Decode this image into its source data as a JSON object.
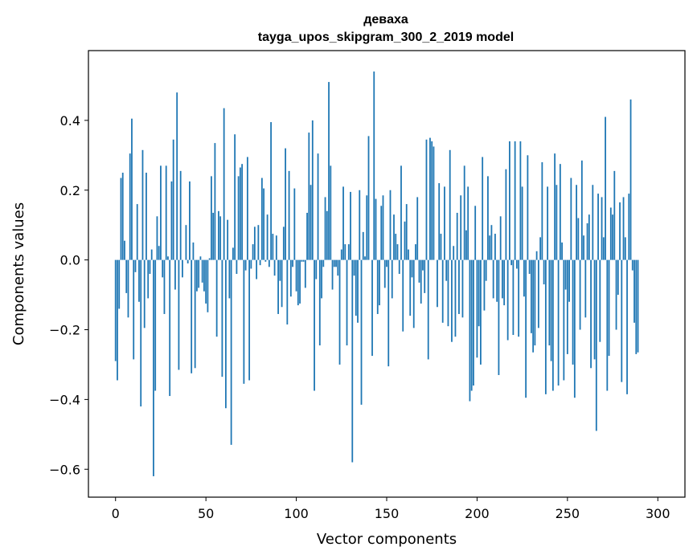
{
  "chart_data": {
    "type": "bar",
    "title": "девaxa",
    "subtitle": "tayga_upos_skipgram_300_2_2019 model",
    "xlabel": "Vector components",
    "ylabel": "Components values",
    "xlim": [
      -15,
      315
    ],
    "ylim": [
      -0.68,
      0.6
    ],
    "xticks": [
      0,
      50,
      100,
      150,
      200,
      250,
      300
    ],
    "yticks": [
      -0.6,
      -0.4,
      -0.2,
      0.0,
      0.2,
      0.4
    ],
    "ytick_labels": [
      "−0.6",
      "−0.4",
      "−0.2",
      "0.0",
      "0.2",
      "0.4"
    ],
    "bar_color": "#1f77b4",
    "values": [
      -0.29,
      -0.345,
      -0.14,
      0.235,
      0.25,
      0.055,
      -0.095,
      -0.165,
      0.305,
      0.405,
      -0.285,
      -0.035,
      0.16,
      -0.12,
      -0.42,
      0.315,
      -0.195,
      0.25,
      -0.11,
      -0.04,
      0.03,
      -0.62,
      -0.375,
      0.125,
      0.04,
      0.27,
      -0.05,
      -0.155,
      0.27,
      0.01,
      -0.39,
      0.225,
      0.345,
      -0.085,
      0.48,
      -0.315,
      0.255,
      -0.05,
      0.0,
      0.1,
      -0.01,
      0.225,
      -0.325,
      0.05,
      -0.31,
      -0.09,
      -0.08,
      0.01,
      -0.065,
      -0.09,
      -0.125,
      -0.15,
      0.005,
      0.24,
      0.135,
      0.335,
      -0.22,
      0.14,
      0.125,
      -0.335,
      0.435,
      -0.425,
      0.115,
      -0.11,
      -0.53,
      0.035,
      0.36,
      -0.04,
      0.24,
      0.265,
      0.275,
      -0.355,
      -0.03,
      0.295,
      -0.345,
      -0.025,
      0.045,
      0.095,
      -0.055,
      0.1,
      -0.015,
      0.235,
      0.205,
      -0.005,
      0.13,
      -0.02,
      0.395,
      0.075,
      -0.045,
      0.07,
      -0.155,
      -0.06,
      -0.135,
      0.095,
      0.32,
      -0.185,
      0.255,
      -0.105,
      -0.02,
      0.205,
      -0.09,
      -0.13,
      -0.125,
      -0.005,
      -0.005,
      -0.08,
      0.135,
      0.365,
      0.215,
      0.4,
      -0.375,
      -0.055,
      0.305,
      -0.245,
      -0.11,
      -0.02,
      0.18,
      0.14,
      0.51,
      0.27,
      -0.085,
      -0.02,
      -0.02,
      -0.045,
      -0.3,
      0.03,
      0.21,
      0.045,
      -0.245,
      0.045,
      0.195,
      -0.58,
      -0.045,
      -0.16,
      -0.18,
      0.2,
      -0.415,
      0.08,
      0.01,
      0.185,
      0.355,
      0.0,
      -0.275,
      0.54,
      0.175,
      -0.155,
      -0.13,
      0.155,
      0.185,
      -0.08,
      -0.02,
      -0.305,
      0.2,
      -0.11,
      0.13,
      0.075,
      0.045,
      -0.04,
      0.27,
      -0.205,
      0.11,
      0.16,
      0.03,
      -0.16,
      -0.05,
      -0.195,
      0.045,
      0.18,
      -0.065,
      -0.125,
      -0.03,
      -0.095,
      0.345,
      -0.285,
      0.35,
      0.34,
      0.325,
      0.0,
      -0.135,
      0.22,
      0.075,
      -0.18,
      0.21,
      -0.06,
      -0.19,
      0.315,
      -0.235,
      0.04,
      -0.22,
      0.135,
      -0.155,
      0.185,
      -0.165,
      0.27,
      0.085,
      0.21,
      -0.405,
      -0.375,
      -0.36,
      0.155,
      -0.28,
      -0.19,
      -0.3,
      0.295,
      -0.145,
      -0.06,
      0.24,
      0.07,
      0.1,
      -0.11,
      0.075,
      -0.12,
      -0.33,
      0.125,
      -0.11,
      -0.13,
      0.26,
      -0.23,
      0.34,
      -0.015,
      -0.215,
      0.34,
      -0.025,
      -0.22,
      0.34,
      0.21,
      -0.105,
      -0.395,
      0.3,
      -0.04,
      -0.21,
      -0.265,
      -0.245,
      0.025,
      -0.195,
      0.065,
      0.28,
      -0.07,
      -0.385,
      0.21,
      -0.245,
      -0.29,
      -0.375,
      0.305,
      0.215,
      -0.36,
      0.275,
      0.05,
      -0.345,
      -0.085,
      -0.27,
      -0.12,
      0.235,
      -0.3,
      -0.395,
      0.215,
      0.12,
      -0.2,
      0.285,
      0.07,
      -0.165,
      0.105,
      0.13,
      -0.31,
      0.215,
      -0.285,
      -0.49,
      0.19,
      -0.235,
      0.18,
      0.065,
      0.41,
      -0.375,
      -0.275,
      0.15,
      0.13,
      0.255,
      -0.2,
      -0.1,
      0.165,
      -0.35,
      0.18,
      0.065,
      -0.385,
      0.19,
      0.46,
      -0.03,
      -0.18,
      -0.27,
      -0.265
    ]
  }
}
